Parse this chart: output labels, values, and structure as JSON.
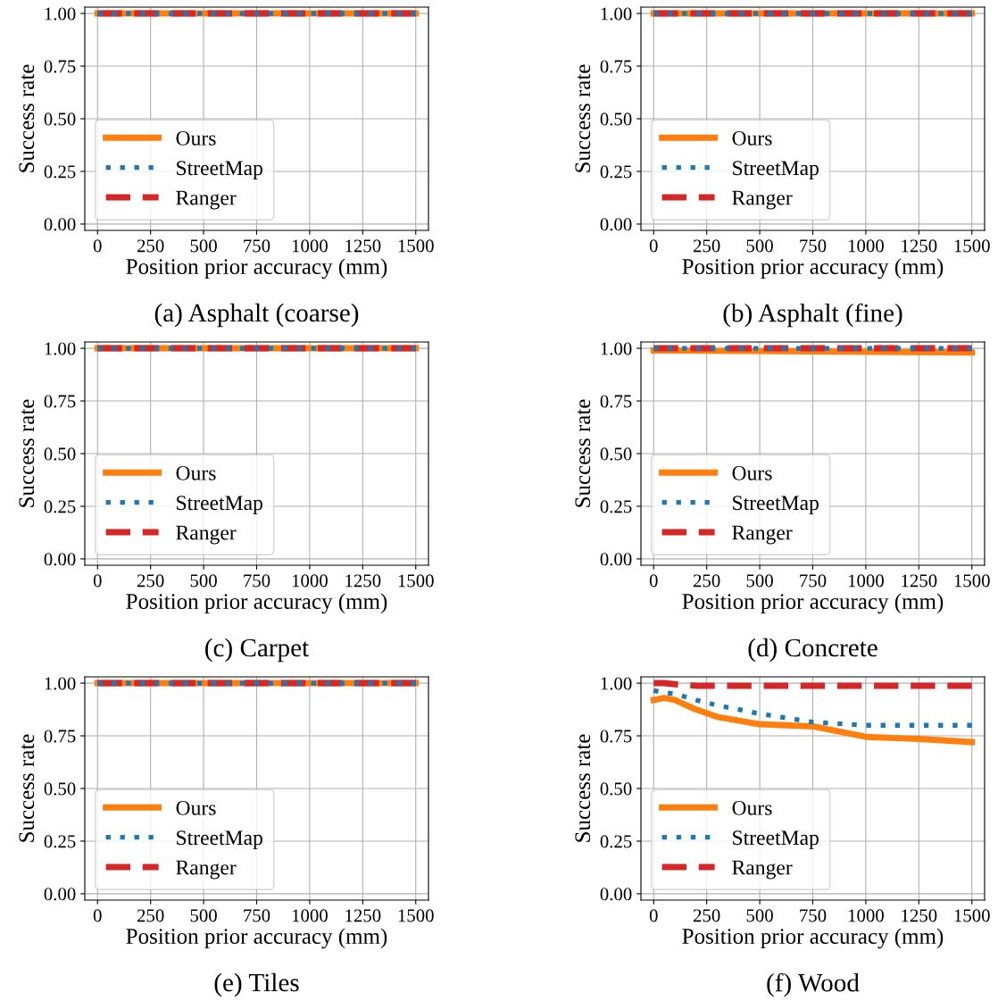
{
  "chart_data": [
    {
      "type": "line",
      "title": "(a) Asphalt (coarse)",
      "xlabel": "Position prior accuracy (mm)",
      "ylabel": "Success rate",
      "x": [
        0,
        1500
      ],
      "xlim": [
        -60,
        1560
      ],
      "ylim": [
        -0.03,
        1.03
      ],
      "xticks": [
        0,
        250,
        500,
        750,
        1000,
        1250,
        1500
      ],
      "yticks": [
        {
          "value": 0,
          "label": "0.00"
        },
        {
          "value": 0.25,
          "label": "0.25"
        },
        {
          "value": 0.5,
          "label": "0.50"
        },
        {
          "value": 0.75,
          "label": "0.75"
        },
        {
          "value": 1,
          "label": "1.00"
        }
      ],
      "grid": true,
      "legend": "lower left",
      "series": [
        {
          "name": "Ours",
          "color": "#ff7f0e",
          "line_style": "solid",
          "values": [
            1.0,
            1.0
          ]
        },
        {
          "name": "StreetMap",
          "color": "#1f77b4",
          "line_style": "dotted",
          "values": [
            1.0,
            1.0
          ]
        },
        {
          "name": "Ranger",
          "color": "#d62728",
          "line_style": "dashed",
          "values": [
            1.0,
            1.0
          ]
        }
      ]
    },
    {
      "type": "line",
      "title": "(b) Asphalt (fine)",
      "xlabel": "Position prior accuracy (mm)",
      "ylabel": "Success rate",
      "x": [
        0,
        1500
      ],
      "xlim": [
        -60,
        1560
      ],
      "ylim": [
        -0.03,
        1.03
      ],
      "xticks": [
        0,
        250,
        500,
        750,
        1000,
        1250,
        1500
      ],
      "yticks": [
        {
          "value": 0,
          "label": "0.00"
        },
        {
          "value": 0.25,
          "label": "0.25"
        },
        {
          "value": 0.5,
          "label": "0.50"
        },
        {
          "value": 0.75,
          "label": "0.75"
        },
        {
          "value": 1,
          "label": "1.00"
        }
      ],
      "grid": true,
      "legend": "lower left",
      "series": [
        {
          "name": "Ours",
          "color": "#ff7f0e",
          "line_style": "solid",
          "values": [
            1.0,
            1.0
          ]
        },
        {
          "name": "StreetMap",
          "color": "#1f77b4",
          "line_style": "dotted",
          "values": [
            1.0,
            1.0
          ]
        },
        {
          "name": "Ranger",
          "color": "#d62728",
          "line_style": "dashed",
          "values": [
            1.0,
            1.0
          ]
        }
      ]
    },
    {
      "type": "line",
      "title": "(c) Carpet",
      "xlabel": "Position prior accuracy (mm)",
      "ylabel": "Success rate",
      "x": [
        0,
        1500
      ],
      "xlim": [
        -60,
        1560
      ],
      "ylim": [
        -0.03,
        1.03
      ],
      "xticks": [
        0,
        250,
        500,
        750,
        1000,
        1250,
        1500
      ],
      "yticks": [
        {
          "value": 0,
          "label": "0.00"
        },
        {
          "value": 0.25,
          "label": "0.25"
        },
        {
          "value": 0.5,
          "label": "0.50"
        },
        {
          "value": 0.75,
          "label": "0.75"
        },
        {
          "value": 1,
          "label": "1.00"
        }
      ],
      "grid": true,
      "legend": "lower left",
      "series": [
        {
          "name": "Ours",
          "color": "#ff7f0e",
          "line_style": "solid",
          "values": [
            1.0,
            1.0
          ]
        },
        {
          "name": "StreetMap",
          "color": "#1f77b4",
          "line_style": "dotted",
          "values": [
            1.0,
            1.0
          ]
        },
        {
          "name": "Ranger",
          "color": "#d62728",
          "line_style": "dashed",
          "values": [
            1.0,
            1.0
          ]
        }
      ]
    },
    {
      "type": "line",
      "title": "(d) Concrete",
      "xlabel": "Position prior accuracy (mm)",
      "ylabel": "Success rate",
      "x": [
        0,
        1500
      ],
      "xlim": [
        -60,
        1560
      ],
      "ylim": [
        -0.03,
        1.03
      ],
      "xticks": [
        0,
        250,
        500,
        750,
        1000,
        1250,
        1500
      ],
      "yticks": [
        {
          "value": 0,
          "label": "0.00"
        },
        {
          "value": 0.25,
          "label": "0.25"
        },
        {
          "value": 0.5,
          "label": "0.50"
        },
        {
          "value": 0.75,
          "label": "0.75"
        },
        {
          "value": 1,
          "label": "1.00"
        }
      ],
      "grid": true,
      "legend": "lower left",
      "series": [
        {
          "name": "Ours",
          "color": "#ff7f0e",
          "line_style": "solid",
          "values": [
            0.99,
            0.98
          ]
        },
        {
          "name": "StreetMap",
          "color": "#1f77b4",
          "line_style": "dotted",
          "values": [
            1.0,
            1.0
          ]
        },
        {
          "name": "Ranger",
          "color": "#d62728",
          "line_style": "dashed",
          "values": [
            1.0,
            1.0
          ]
        }
      ]
    },
    {
      "type": "line",
      "title": "(e) Tiles",
      "xlabel": "Position prior accuracy (mm)",
      "ylabel": "Success rate",
      "x": [
        0,
        1500
      ],
      "xlim": [
        -60,
        1560
      ],
      "ylim": [
        -0.03,
        1.03
      ],
      "xticks": [
        0,
        250,
        500,
        750,
        1000,
        1250,
        1500
      ],
      "yticks": [
        {
          "value": 0,
          "label": "0.00"
        },
        {
          "value": 0.25,
          "label": "0.25"
        },
        {
          "value": 0.5,
          "label": "0.50"
        },
        {
          "value": 0.75,
          "label": "0.75"
        },
        {
          "value": 1,
          "label": "1.00"
        }
      ],
      "grid": true,
      "legend": "lower left",
      "series": [
        {
          "name": "Ours",
          "color": "#ff7f0e",
          "line_style": "solid",
          "values": [
            1.0,
            1.0
          ]
        },
        {
          "name": "StreetMap",
          "color": "#1f77b4",
          "line_style": "dotted",
          "values": [
            1.0,
            1.0
          ]
        },
        {
          "name": "Ranger",
          "color": "#d62728",
          "line_style": "dashed",
          "values": [
            1.0,
            1.0
          ]
        }
      ]
    },
    {
      "type": "line",
      "title": "(f) Wood",
      "xlabel": "Position prior accuracy (mm)",
      "ylabel": "Success rate",
      "x": [
        0,
        50,
        100,
        200,
        300,
        500,
        750,
        1000,
        1250,
        1500
      ],
      "xlim": [
        -60,
        1560
      ],
      "ylim": [
        -0.03,
        1.03
      ],
      "xticks": [
        0,
        250,
        500,
        750,
        1000,
        1250,
        1500
      ],
      "yticks": [
        {
          "value": 0,
          "label": "0.00"
        },
        {
          "value": 0.25,
          "label": "0.25"
        },
        {
          "value": 0.5,
          "label": "0.50"
        },
        {
          "value": 0.75,
          "label": "0.75"
        },
        {
          "value": 1,
          "label": "1.00"
        }
      ],
      "grid": true,
      "legend": "lower left",
      "series": [
        {
          "name": "Ours",
          "color": "#ff7f0e",
          "line_style": "solid",
          "values": [
            0.92,
            0.93,
            0.92,
            0.875,
            0.84,
            0.805,
            0.795,
            0.745,
            0.735,
            0.72
          ]
        },
        {
          "name": "StreetMap",
          "color": "#1f77b4",
          "line_style": "dotted",
          "values": [
            0.965,
            0.955,
            0.95,
            0.92,
            0.895,
            0.855,
            0.815,
            0.8,
            0.8,
            0.8
          ]
        },
        {
          "name": "Ranger",
          "color": "#d62728",
          "line_style": "dashed",
          "values": [
            1.0,
            1.0,
            0.995,
            0.988,
            0.988,
            0.988,
            0.988,
            0.988,
            0.988,
            0.988
          ]
        }
      ]
    }
  ]
}
